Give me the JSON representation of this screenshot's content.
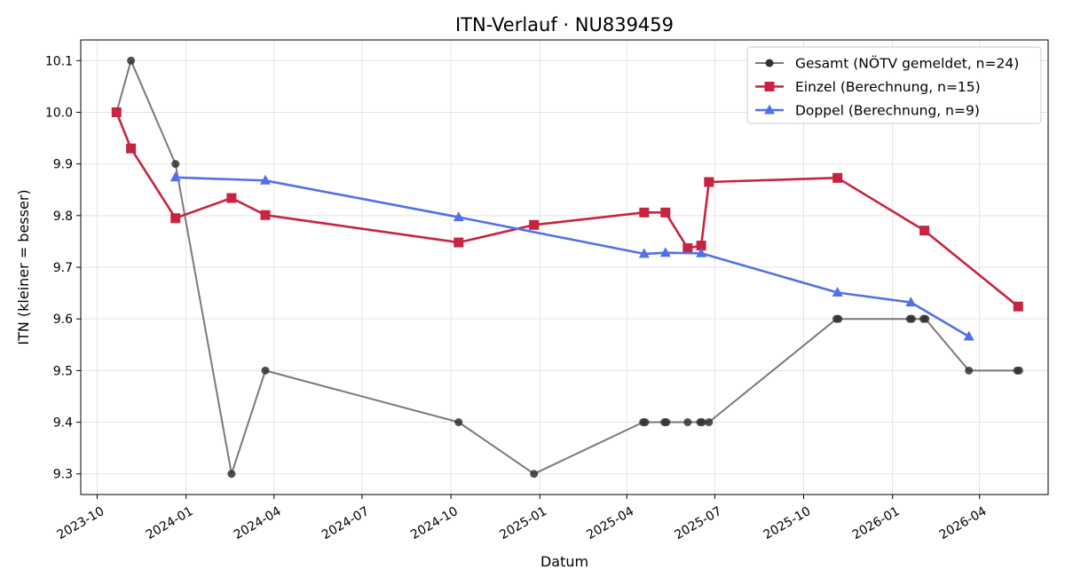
{
  "chart_data": {
    "type": "line",
    "title": "ITN-Verlauf · NU839459",
    "xlabel": "Datum",
    "ylabel": "ITN  (kleiner = besser)",
    "xlim": [
      "2023-09-14",
      "2026-06-11"
    ],
    "ylim": [
      9.26,
      10.14
    ],
    "x_ticks": [
      "2023-10",
      "2024-01",
      "2024-04",
      "2024-07",
      "2024-10",
      "2025-01",
      "2025-04",
      "2025-07",
      "2025-10",
      "2026-01",
      "2026-04"
    ],
    "y_ticks": [
      "9.3",
      "9.4",
      "9.5",
      "9.6",
      "9.7",
      "9.8",
      "9.9",
      "10.0",
      "10.1"
    ],
    "grid": true,
    "legend_position": "top-right",
    "series": [
      {
        "name": "Gesamt (NÖTV gemeldet, n=24)",
        "color": "#555555",
        "marker": "circle",
        "points": [
          {
            "x": "2023-10-21",
            "y": 10.0
          },
          {
            "x": "2023-11-05",
            "y": 10.1
          },
          {
            "x": "2023-12-21",
            "y": 9.9
          },
          {
            "x": "2024-02-17",
            "y": 9.3
          },
          {
            "x": "2024-03-23",
            "y": 9.5
          },
          {
            "x": "2024-10-09",
            "y": 9.4
          },
          {
            "x": "2024-12-26",
            "y": 9.3
          },
          {
            "x": "2025-04-18",
            "y": 9.4
          },
          {
            "x": "2025-04-20",
            "y": 9.4
          },
          {
            "x": "2025-05-10",
            "y": 9.4
          },
          {
            "x": "2025-05-12",
            "y": 9.4
          },
          {
            "x": "2025-06-03",
            "y": 9.4
          },
          {
            "x": "2025-06-16",
            "y": 9.4
          },
          {
            "x": "2025-06-18",
            "y": 9.4
          },
          {
            "x": "2025-06-25",
            "y": 9.4
          },
          {
            "x": "2025-11-04",
            "y": 9.6
          },
          {
            "x": "2025-11-06",
            "y": 9.6
          },
          {
            "x": "2026-01-19",
            "y": 9.6
          },
          {
            "x": "2026-01-21",
            "y": 9.6
          },
          {
            "x": "2026-02-02",
            "y": 9.6
          },
          {
            "x": "2026-02-04",
            "y": 9.6
          },
          {
            "x": "2026-03-21",
            "y": 9.5
          },
          {
            "x": "2026-05-10",
            "y": 9.5
          },
          {
            "x": "2026-05-12",
            "y": 9.5
          }
        ]
      },
      {
        "name": "Einzel (Berechnung, n=15)",
        "color": "#c8233f",
        "marker": "square",
        "points": [
          {
            "x": "2023-10-21",
            "y": 10.0
          },
          {
            "x": "2023-11-05",
            "y": 9.93
          },
          {
            "x": "2023-12-21",
            "y": 9.795
          },
          {
            "x": "2024-02-17",
            "y": 9.834
          },
          {
            "x": "2024-03-23",
            "y": 9.801
          },
          {
            "x": "2024-10-09",
            "y": 9.748
          },
          {
            "x": "2024-12-26",
            "y": 9.782
          },
          {
            "x": "2025-04-19",
            "y": 9.806
          },
          {
            "x": "2025-05-11",
            "y": 9.806
          },
          {
            "x": "2025-06-03",
            "y": 9.737
          },
          {
            "x": "2025-06-17",
            "y": 9.742
          },
          {
            "x": "2025-06-25",
            "y": 9.865
          },
          {
            "x": "2025-11-05",
            "y": 9.873
          },
          {
            "x": "2026-02-03",
            "y": 9.771
          },
          {
            "x": "2026-05-11",
            "y": 9.624
          }
        ]
      },
      {
        "name": "Doppel (Berechnung, n=9)",
        "color": "#5470e8",
        "marker": "triangle",
        "points": [
          {
            "x": "2023-12-21",
            "y": 9.874
          },
          {
            "x": "2024-03-23",
            "y": 9.868
          },
          {
            "x": "2024-10-09",
            "y": 9.797
          },
          {
            "x": "2025-04-19",
            "y": 9.726
          },
          {
            "x": "2025-05-11",
            "y": 9.728
          },
          {
            "x": "2025-06-17",
            "y": 9.727
          },
          {
            "x": "2025-11-05",
            "y": 9.651
          },
          {
            "x": "2026-01-20",
            "y": 9.632
          },
          {
            "x": "2026-03-21",
            "y": 9.566
          }
        ]
      }
    ]
  }
}
